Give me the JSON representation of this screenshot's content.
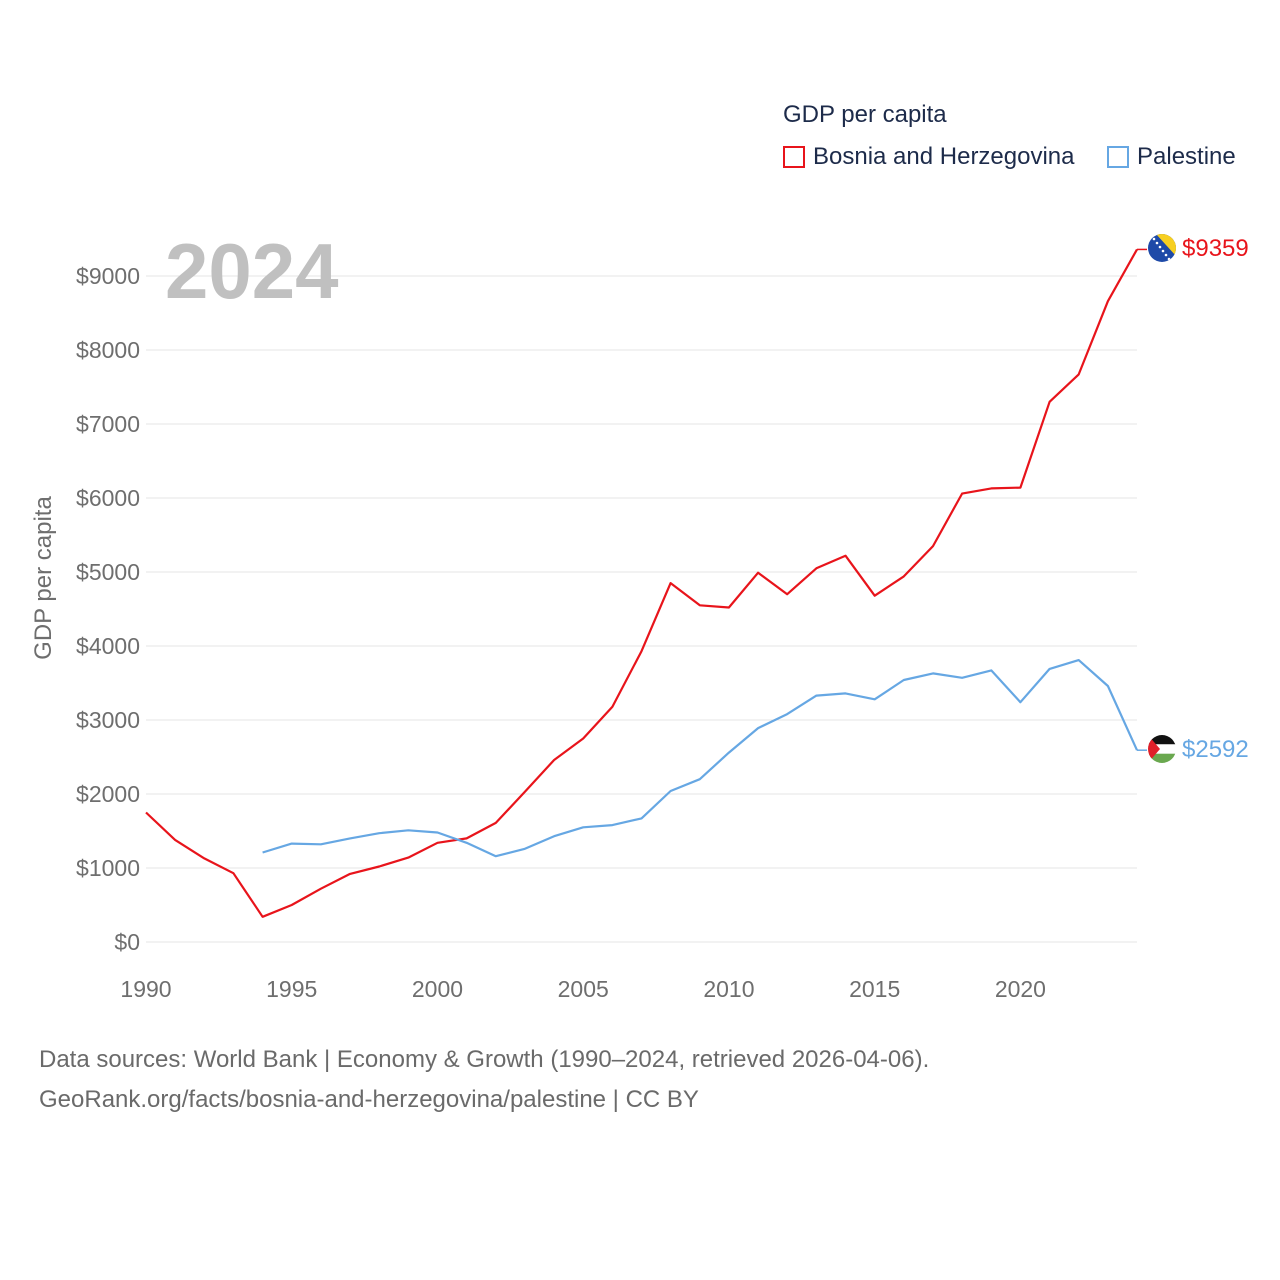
{
  "chart_data": {
    "type": "line",
    "title": "GDP per capita",
    "year_display": "2024",
    "ylabel": "GDP per capita",
    "xlabel": "",
    "xlim": [
      1990,
      2024
    ],
    "ylim": [
      0,
      9500
    ],
    "x_ticks": [
      "1990",
      "1995",
      "2000",
      "2005",
      "2010",
      "2015",
      "2020"
    ],
    "x_tick_values": [
      1990,
      1995,
      2000,
      2005,
      2010,
      2015,
      2020
    ],
    "y_ticks": [
      "$0",
      "$1000",
      "$2000",
      "$3000",
      "$4000",
      "$5000",
      "$6000",
      "$7000",
      "$8000",
      "$9000"
    ],
    "y_tick_values": [
      0,
      1000,
      2000,
      3000,
      4000,
      5000,
      6000,
      7000,
      8000,
      9000
    ],
    "series": [
      {
        "name": "Bosnia and Herzegovina",
        "color": "#e8141b",
        "end_label": "$9359",
        "flag": "bosnia-flag-icon",
        "x": [
          1990,
          1991,
          1992,
          1993,
          1994,
          1995,
          1996,
          1997,
          1998,
          1999,
          2000,
          2001,
          2002,
          2003,
          2004,
          2005,
          2006,
          2007,
          2008,
          2009,
          2010,
          2011,
          2012,
          2013,
          2014,
          2015,
          2016,
          2017,
          2018,
          2019,
          2020,
          2021,
          2022,
          2023,
          2024
        ],
        "values": [
          1750,
          1380,
          1130,
          930,
          340,
          500,
          720,
          920,
          1020,
          1140,
          1340,
          1400,
          1610,
          2030,
          2460,
          2750,
          3180,
          3930,
          4850,
          4550,
          4520,
          4990,
          4700,
          5050,
          5220,
          4680,
          4940,
          5350,
          6060,
          6130,
          6140,
          7300,
          7670,
          8660,
          9359
        ]
      },
      {
        "name": "Palestine",
        "color": "#66a7e3",
        "end_label": "$2592",
        "flag": "palestine-flag-icon",
        "x": [
          1994,
          1995,
          1996,
          1997,
          1998,
          1999,
          2000,
          2001,
          2002,
          2003,
          2004,
          2005,
          2006,
          2007,
          2008,
          2009,
          2010,
          2011,
          2012,
          2013,
          2014,
          2015,
          2016,
          2017,
          2018,
          2019,
          2020,
          2021,
          2022,
          2023,
          2024
        ],
        "values": [
          1210,
          1330,
          1320,
          1400,
          1470,
          1510,
          1480,
          1340,
          1160,
          1260,
          1430,
          1550,
          1580,
          1670,
          2040,
          2200,
          2560,
          2890,
          3080,
          3330,
          3360,
          3280,
          3540,
          3630,
          3570,
          3670,
          3240,
          3690,
          3810,
          3460,
          2592
        ]
      }
    ]
  },
  "source": {
    "line1": "Data sources: World Bank | Economy & Growth (1990–2024, retrieved 2026-04-06).",
    "line2": "GeoRank.org/facts/bosnia-and-herzegovina/palestine | CC BY"
  }
}
